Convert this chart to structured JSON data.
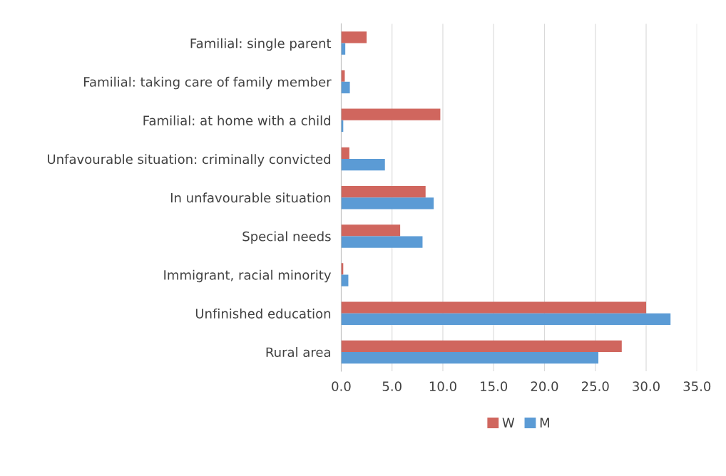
{
  "chart_data": {
    "type": "bar",
    "orientation": "horizontal",
    "categories": [
      "Familial: single parent",
      "Familial: taking care of family member",
      "Familial: at home with a child",
      "Unfavourable situation: criminally convicted",
      "In unfavourable situation",
      "Special needs",
      "Immigrant, racial minority",
      "Unfinished education",
      "Rural area"
    ],
    "series": [
      {
        "name": "W",
        "color": "#d0665e",
        "values": [
          2.5,
          0.35,
          9.75,
          0.8,
          8.3,
          5.8,
          0.2,
          30.0,
          27.6
        ]
      },
      {
        "name": "M",
        "color": "#5b9bd5",
        "values": [
          0.4,
          0.85,
          0.2,
          4.3,
          9.1,
          8.0,
          0.7,
          32.4,
          25.3
        ]
      }
    ],
    "xlim": [
      0,
      35
    ],
    "xticks": [
      {
        "value": 0,
        "label": "0.0"
      },
      {
        "value": 5,
        "label": "5.0"
      },
      {
        "value": 10,
        "label": "10.0"
      },
      {
        "value": 15,
        "label": "15.0"
      },
      {
        "value": 20,
        "label": "20.0"
      },
      {
        "value": 25,
        "label": "25.0"
      },
      {
        "value": 30,
        "label": "30.0"
      },
      {
        "value": 35,
        "label": "35.0"
      }
    ],
    "grid": "x",
    "legend": "bottom"
  }
}
